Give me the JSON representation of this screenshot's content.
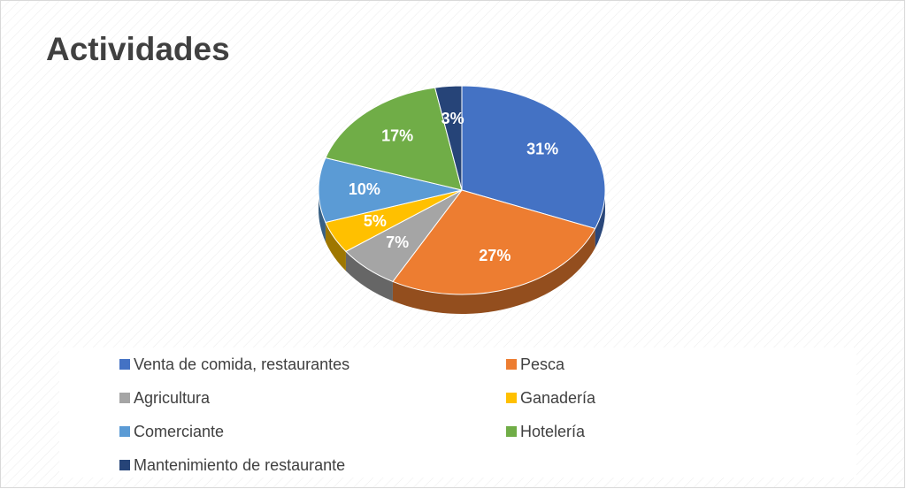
{
  "chart_data": {
    "type": "pie",
    "title": "Actividades",
    "categories": [
      "Venta de comida, restaurantes",
      "Pesca",
      "Agricultura",
      "Ganadería",
      "Comerciante",
      "Hotelería",
      "Mantenimiento de restaurante"
    ],
    "values": [
      31,
      27,
      7,
      5,
      10,
      17,
      3
    ],
    "value_labels": [
      "31%",
      "27%",
      "7%",
      "5%",
      "10%",
      "17%",
      "3%"
    ],
    "colors": [
      "#4472c4",
      "#ed7d31",
      "#a5a5a5",
      "#ffc000",
      "#5b9bd5",
      "#70ad47",
      "#264478"
    ],
    "legend": "bottom"
  }
}
